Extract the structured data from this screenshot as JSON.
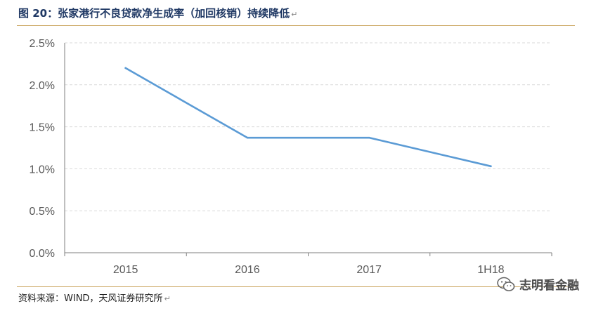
{
  "title": "图 20：张家港行不良贷款净生成率（加回核销）持续降低",
  "source": "资料来源：WIND，天风证券研究所",
  "watermark": {
    "text": "志明看金融",
    "icon": "wechat-icon"
  },
  "colors": {
    "line": "#5b9bd5",
    "title": "#1f3864",
    "rule": "#c9a45c",
    "grid": "#d9d9d9",
    "axis": "#7f7f7f"
  },
  "chart_data": {
    "type": "line",
    "categories": [
      "2015",
      "2016",
      "2017",
      "1H18"
    ],
    "series": [
      {
        "values": [
          2.2,
          1.37,
          1.37,
          1.03
        ]
      }
    ],
    "yticks": [
      "0.0%",
      "0.5%",
      "1.0%",
      "1.5%",
      "2.0%",
      "2.5%"
    ],
    "ylim": [
      0,
      2.5
    ],
    "grid": true,
    "legend": "none"
  }
}
